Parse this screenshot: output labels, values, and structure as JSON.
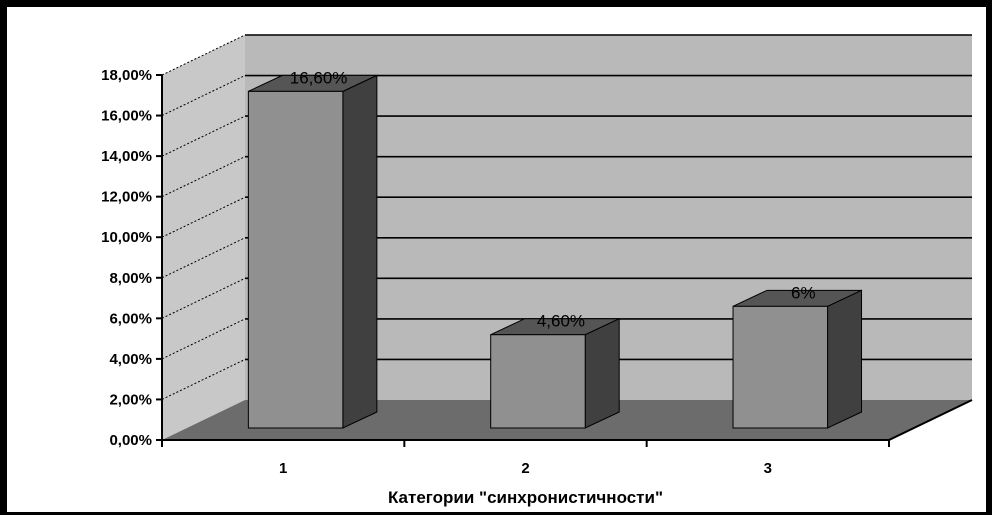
{
  "chart_data": {
    "type": "bar",
    "categories": [
      "1",
      "2",
      "3"
    ],
    "values": [
      16.6,
      4.6,
      6
    ],
    "data_labels": [
      "16,60%",
      "4,60%",
      "6%"
    ],
    "xlabel": "Категории \"синхронистичности\"",
    "ylabel": "",
    "ylim": [
      0,
      18
    ],
    "y_ticks": [
      "0,00%",
      "2,00%",
      "4,00%",
      "6,00%",
      "8,00%",
      "10,00%",
      "12,00%",
      "14,00%",
      "16,00%",
      "18,00%"
    ],
    "grid": true,
    "legend": "none",
    "style": "3d-column",
    "colors": {
      "bar_front": "#909090",
      "bar_side": "#404040",
      "bar_top": "#555555",
      "wall": "#b9b9b9",
      "side_wall": "#c8c8c8",
      "floor": "#6c6c6c",
      "gridline": "#000000"
    }
  }
}
